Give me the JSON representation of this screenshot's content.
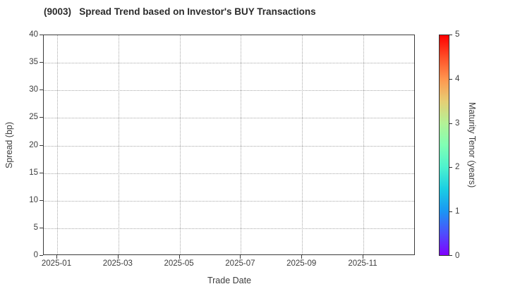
{
  "chart_data": {
    "type": "scatter",
    "title": "(9003)   Spread Trend based on Investor's BUY Transactions",
    "xlabel": "Trade Date",
    "ylabel": "Spread (bp)",
    "x_tick_labels": [
      "2025-01",
      "2025-03",
      "2025-05",
      "2025-07",
      "2025-09",
      "2025-11"
    ],
    "y_tick_labels": [
      0,
      5,
      10,
      15,
      20,
      25,
      30,
      35,
      40
    ],
    "ylim": [
      0,
      40
    ],
    "grid": true,
    "grid_style": "dotted",
    "legend_position": "none",
    "points": [],
    "note": "no data points plotted - empty axes",
    "colorbar": {
      "label": "Maturity Tenor (years)",
      "tick_labels": [
        0,
        1,
        2,
        3,
        4,
        5
      ],
      "lim": [
        0,
        5
      ],
      "colormap": "rainbow",
      "gradient_stops_bottom_to_top": [
        "#8000ff",
        "#4d4ffc",
        "#1a96f3",
        "#1acee3",
        "#4df2ce",
        "#80ffb4",
        "#b3f296",
        "#e6ce74",
        "#ff964f",
        "#ff4f28",
        "#ff0000"
      ]
    }
  }
}
